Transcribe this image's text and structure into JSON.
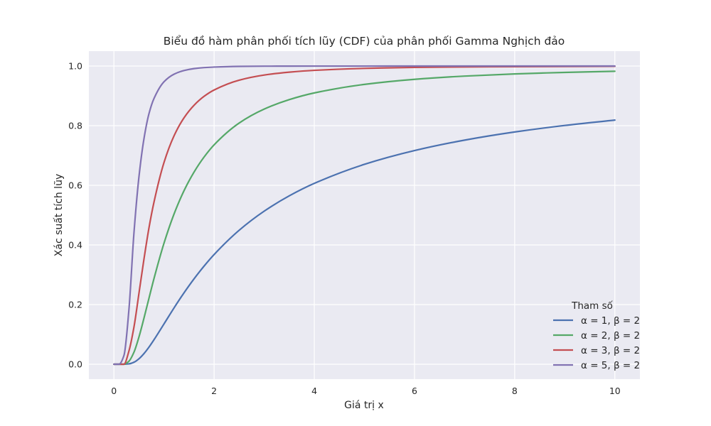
{
  "chart_data": {
    "type": "line",
    "title": "Biểu đồ hàm phân phối tích lũy (CDF) của phân phối Gamma Nghịch đảo",
    "xlabel": "Giá trị x",
    "ylabel": "Xác suất tích lũy",
    "xlim": [
      -0.5,
      10.5
    ],
    "ylim": [
      -0.05,
      1.05
    ],
    "xticks": [
      0,
      2,
      4,
      6,
      8,
      10
    ],
    "xtick_labels": [
      "0",
      "2",
      "4",
      "6",
      "8",
      "10"
    ],
    "yticks": [
      0.0,
      0.2,
      0.4,
      0.6,
      0.8,
      1.0
    ],
    "ytick_labels": [
      "0.0",
      "0.2",
      "0.4",
      "0.6",
      "0.8",
      "1.0"
    ],
    "grid": true,
    "legend": {
      "title": "Tham số",
      "placement": "lower-right"
    },
    "x": [
      0.0,
      0.1,
      0.2,
      0.3,
      0.4,
      0.5,
      0.6,
      0.7,
      0.8,
      1.0,
      1.2,
      1.4,
      1.6,
      1.8,
      2.0,
      2.5,
      3.0,
      3.5,
      4.0,
      5.0,
      6.0,
      7.0,
      8.0,
      9.0,
      10.0
    ],
    "series": [
      {
        "name": "α = 1, β = 2",
        "color": "#4c72b0",
        "values": [
          0.0,
          0.0,
          0.0,
          0.0013,
          0.0067,
          0.0183,
          0.0357,
          0.0574,
          0.0821,
          0.1353,
          0.1889,
          0.2397,
          0.2865,
          0.3292,
          0.3679,
          0.4493,
          0.5134,
          0.5647,
          0.6065,
          0.6703,
          0.7165,
          0.7515,
          0.7788,
          0.8007,
          0.8187
        ]
      },
      {
        "name": "α = 2, β = 2",
        "color": "#55a868",
        "values": [
          0.0,
          0.0,
          0.0,
          0.0102,
          0.0404,
          0.0916,
          0.1546,
          0.2215,
          0.2873,
          0.406,
          0.5037,
          0.5822,
          0.6446,
          0.695,
          0.7358,
          0.8088,
          0.8556,
          0.8873,
          0.9098,
          0.9384,
          0.9554,
          0.9662,
          0.9735,
          0.9786,
          0.9825
        ]
      },
      {
        "name": "α = 3, β = 2",
        "color": "#c44e52",
        "values": [
          0.0,
          0.0,
          0.0,
          0.0446,
          0.1247,
          0.2381,
          0.3528,
          0.4576,
          0.5438,
          0.6767,
          0.7659,
          0.8266,
          0.8685,
          0.8984,
          0.9197,
          0.9526,
          0.9698,
          0.9794,
          0.9856,
          0.9921,
          0.9954,
          0.997,
          0.9979,
          0.9985,
          0.9989
        ]
      },
      {
        "name": "α = 5, β = 2",
        "color": "#8172b2",
        "values": [
          0.0,
          0.0,
          0.0293,
          0.1841,
          0.4405,
          0.6288,
          0.7565,
          0.8404,
          0.8912,
          0.9473,
          0.9726,
          0.985,
          0.9914,
          0.9948,
          0.9966,
          0.9988,
          0.9995,
          0.9997,
          0.9998,
          0.9999,
          1.0,
          1.0,
          1.0,
          1.0,
          1.0
        ]
      }
    ]
  }
}
